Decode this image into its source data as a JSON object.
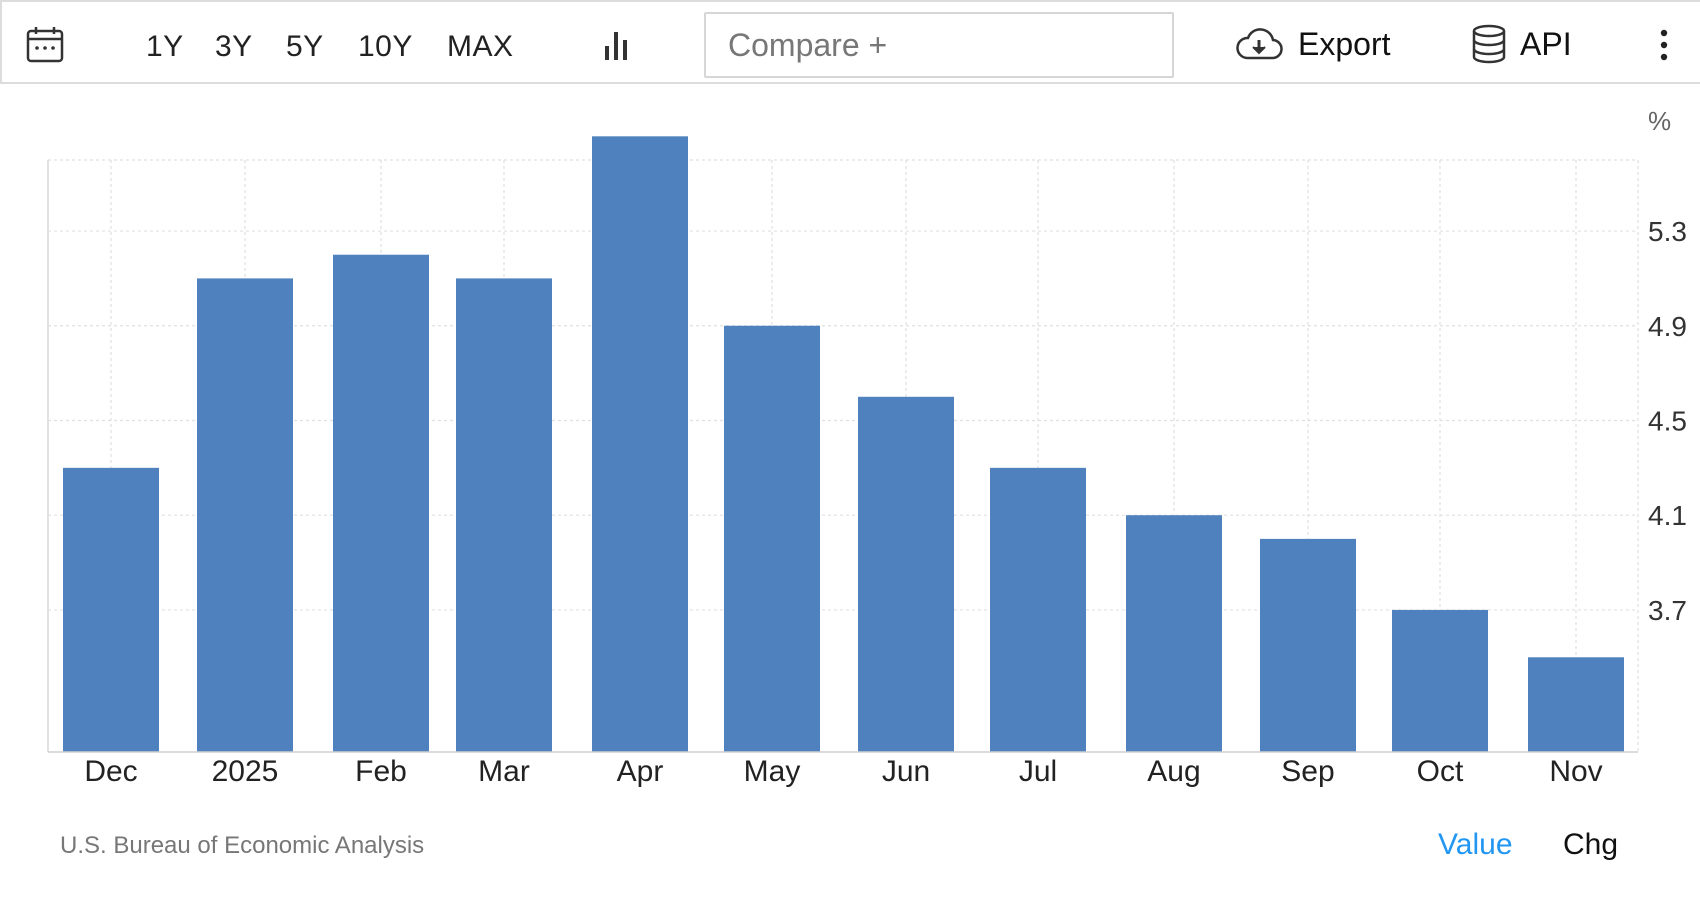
{
  "toolbar": {
    "calendar_icon": "calendar-icon",
    "ranges": [
      "1Y",
      "3Y",
      "5Y",
      "10Y",
      "MAX"
    ],
    "chart_type_icon": "bar-chart-icon",
    "compare_placeholder": "Compare +",
    "export_label": "Export",
    "export_icon": "cloud-download-icon",
    "api_label": "API",
    "api_icon": "database-icon",
    "more_icon": "vertical-dots-icon"
  },
  "unit_label": "%",
  "source": "U.S. Bureau of Economic Analysis",
  "toggles": {
    "value_label": "Value",
    "chg_label": "Chg"
  },
  "colors": {
    "bar": "#4e81bd",
    "active_toggle": "#2196f3",
    "grid": "#e0e0e0"
  },
  "chart_data": {
    "type": "bar",
    "categories": [
      "Dec",
      "2025",
      "Feb",
      "Mar",
      "Apr",
      "May",
      "Jun",
      "Jul",
      "Aug",
      "Sep",
      "Oct",
      "Nov"
    ],
    "values": [
      4.3,
      5.1,
      5.2,
      5.1,
      5.7,
      4.9,
      4.6,
      4.3,
      4.1,
      4.0,
      3.7,
      3.5
    ],
    "yticks": [
      3.7,
      4.1,
      4.5,
      4.9,
      5.3
    ],
    "ylim": [
      3.1,
      5.6
    ],
    "ylabel": "%",
    "grid": true,
    "y_axis_side": "right"
  }
}
